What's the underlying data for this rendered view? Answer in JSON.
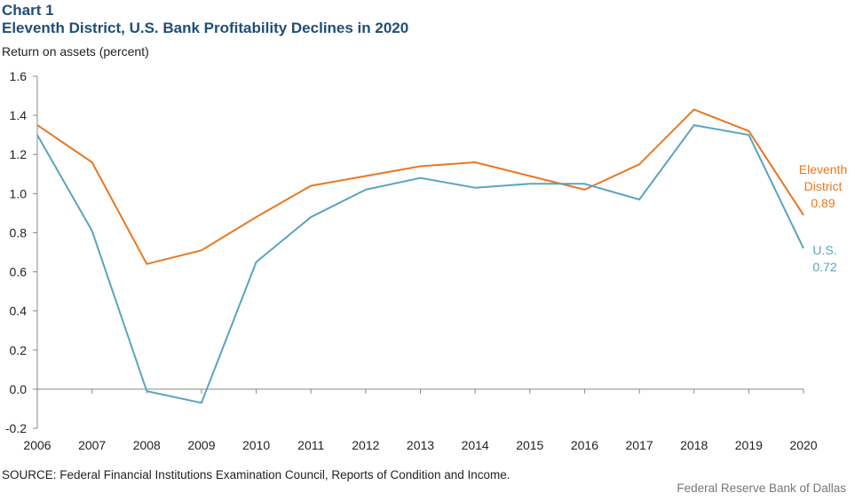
{
  "header": {
    "chart_label": "Chart 1",
    "title": "Eleventh District, U.S. Bank Profitability Declines in 2020"
  },
  "footer": {
    "source": "SOURCE: Federal Financial Institutions Examination Council, Reports of Condition and Income.",
    "credit": "Federal Reserve Bank of Dallas"
  },
  "colors": {
    "eleventh_district": "#e87722",
    "us": "#5ba3c0",
    "title": "#1f4e79"
  },
  "chart_data": {
    "type": "line",
    "title": "Eleventh District, U.S. Bank Profitability Declines in 2020",
    "xlabel": "",
    "ylabel": "Return on assets (percent)",
    "x": [
      2006,
      2007,
      2008,
      2009,
      2010,
      2011,
      2012,
      2013,
      2014,
      2015,
      2016,
      2017,
      2018,
      2019,
      2020
    ],
    "ylim": [
      -0.2,
      1.6
    ],
    "yticks": [
      "-0.2",
      "0.0",
      "0.2",
      "0.4",
      "0.6",
      "0.8",
      "1.0",
      "1.2",
      "1.4",
      "1.6"
    ],
    "grid": false,
    "series": [
      {
        "key": "eleventh_district",
        "label_lines": [
          "Eleventh",
          "District",
          "0.89"
        ],
        "values": [
          1.35,
          1.16,
          0.64,
          0.71,
          0.88,
          1.04,
          1.09,
          1.14,
          1.16,
          1.09,
          1.02,
          1.15,
          1.43,
          1.32,
          0.89
        ]
      },
      {
        "key": "us",
        "label_lines": [
          "U.S.",
          "0.72"
        ],
        "values": [
          1.3,
          0.81,
          -0.01,
          -0.07,
          0.65,
          0.88,
          1.02,
          1.08,
          1.03,
          1.05,
          1.05,
          0.97,
          1.35,
          1.3,
          0.72
        ]
      }
    ]
  }
}
